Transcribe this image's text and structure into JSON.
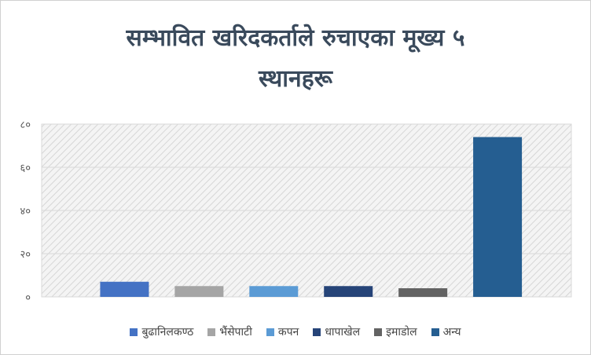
{
  "chart_data": {
    "type": "bar",
    "title_lines": [
      "सम्भावित खरिदकर्ताले रुचाएका मूख्य ५",
      "स्थानहरू"
    ],
    "categories": [
      "बुढानिलकण्ठ",
      "भैंसेपाटी",
      "कपन",
      "धापाखेल",
      "इमाडोल",
      "अन्य"
    ],
    "values": [
      7,
      5,
      5,
      5,
      4,
      74
    ],
    "colors": [
      "#4472c4",
      "#a5a5a5",
      "#5b9bd5",
      "#264478",
      "#636363",
      "#255e91"
    ],
    "ylim": [
      0,
      80
    ],
    "yticks": [
      0,
      20,
      40,
      60,
      80
    ],
    "ytick_labels": [
      "०",
      "२०",
      "४०",
      "६०",
      "८०"
    ],
    "legend": "bottom",
    "grid": true
  }
}
